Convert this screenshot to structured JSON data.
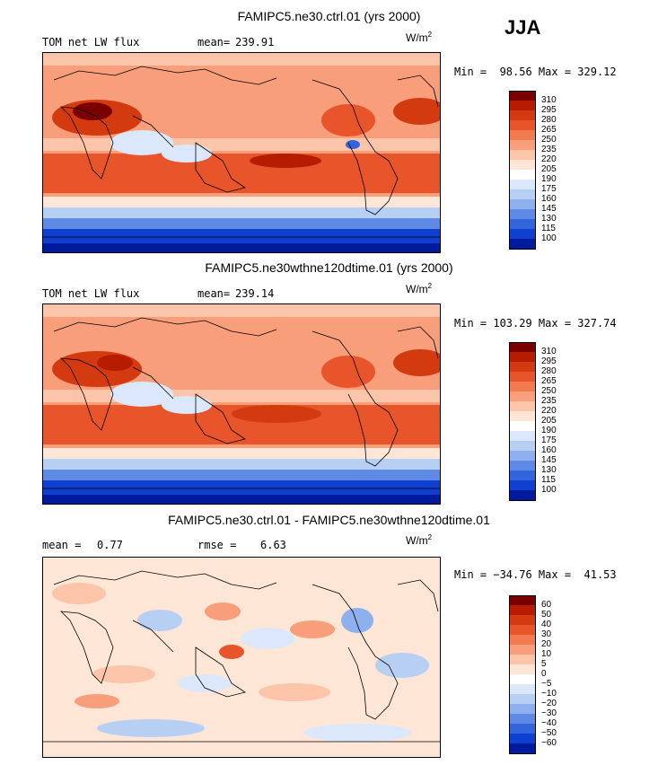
{
  "season": "JJA",
  "units_base": "W/m",
  "units_exp": "2",
  "panels": [
    {
      "title": "FAMIPC5.ne30.ctrl.01 (yrs 2000)",
      "left_label": "TOM net LW flux",
      "stat_label": "mean=",
      "stat_value": "239.91",
      "minmax": "Min =  98.56 Max = 329.12",
      "type": "field"
    },
    {
      "title": "FAMIPC5.ne30wthne120dtime.01 (yrs 2000)",
      "left_label": "TOM net LW flux",
      "stat_label": "mean=",
      "stat_value": "239.14",
      "minmax": "Min = 103.29 Max = 327.74",
      "type": "field"
    },
    {
      "title": "FAMIPC5.ne30.ctrl.01 - FAMIPC5.ne30wthne120dtime.01",
      "left_label": "mean =",
      "left_value": "0.77",
      "stat_label": "rmse =",
      "stat_value": "6.63",
      "minmax": "Min = −34.76 Max =  41.53",
      "type": "diff"
    }
  ],
  "colorbar_field": {
    "labels": [
      "310",
      "295",
      "280",
      "265",
      "250",
      "235",
      "220",
      "205",
      "190",
      "175",
      "160",
      "145",
      "130",
      "115",
      "100"
    ],
    "colors": [
      "#7a0000",
      "#b81c00",
      "#d43a10",
      "#e8552a",
      "#f27a50",
      "#f89e7a",
      "#fcc4a8",
      "#fde6d6",
      "#ffffff",
      "#dbe8fb",
      "#b8cff4",
      "#8fb0ee",
      "#5e8ae6",
      "#3264dc",
      "#0f3fcf",
      "#001a9e"
    ]
  },
  "colorbar_diff": {
    "labels": [
      "60",
      "50",
      "40",
      "30",
      "20",
      "10",
      "5",
      "0",
      "−5",
      "−10",
      "−20",
      "−30",
      "−40",
      "−50",
      "−60"
    ],
    "colors": [
      "#7a0000",
      "#b81c00",
      "#d43a10",
      "#e8552a",
      "#f27a50",
      "#f89e7a",
      "#fcc4a8",
      "#fde6d6",
      "#ffffff",
      "#dbe8fb",
      "#b8cff4",
      "#8fb0ee",
      "#5e8ae6",
      "#3264dc",
      "#0f3fcf",
      "#001a9e"
    ]
  }
}
